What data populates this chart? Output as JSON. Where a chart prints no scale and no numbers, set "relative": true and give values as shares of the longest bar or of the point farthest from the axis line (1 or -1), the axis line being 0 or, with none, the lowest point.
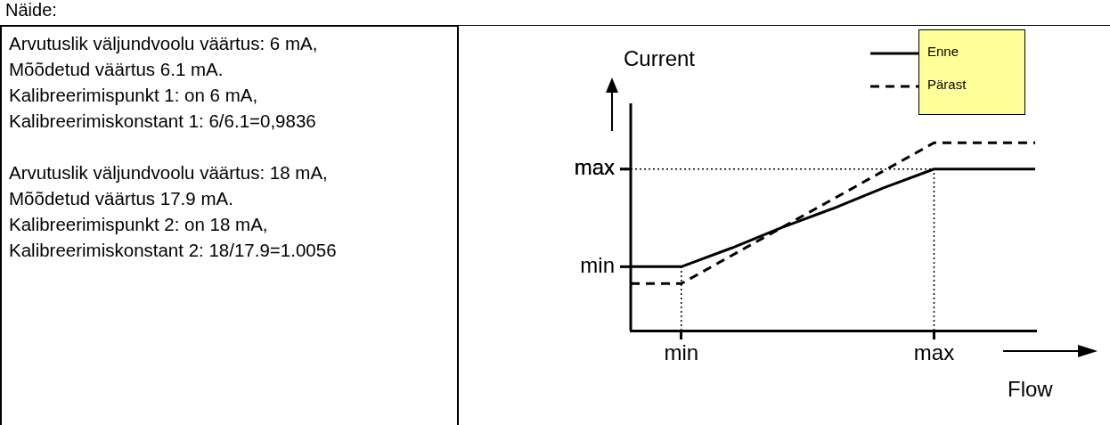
{
  "chart_data": {
    "type": "line",
    "title": "Näide:",
    "annotations": [
      "Arvutuslik väljundvoolu väärtus: 6 mA,",
      "Mõõdetud väärtus 6.1 mA.",
      "Kalibreerimispunkt 1: on 6 mA,",
      "Kalibreerimiskonstant 1: 6/6.1=0,9836",
      "Arvutuslik väljundvoolu väärtus: 18 mA,",
      "Mõõdetud väärtus 17.9 mA.",
      "Kalibreerimispunkt 2: on 18 mA,",
      "Kalibreerimiskonstant 2: 18/17.9=1.0056",
      "min"
    ],
    "xlabel": "Flow",
    "ylabel": "Current",
    "relative": true,
    "categories": [
      null,
      "min",
      null,
      null,
      null,
      null,
      "max",
      null,
      null
    ],
    "series": [
      {
        "name": "Enne",
        "color": "#000000",
        "line_style": "solid",
        "values": [
          0.34,
          0.34,
          0.44,
          0.55,
          0.65,
          0.76,
          0.86,
          0.86,
          0.86
        ]
      },
      {
        "name": "Pärast",
        "color": "#000000",
        "line_style": "dashed",
        "values": [
          0.25,
          0.25,
          0.4,
          0.55,
          0.7,
          0.85,
          1,
          1,
          1
        ]
      }
    ],
    "ref_lines": [
      {
        "axis": "y",
        "value": 0.86,
        "label": "max",
        "line_style": "dotted",
        "color": "#000000"
      },
      {
        "axis": "x",
        "value": "min",
        "line_style": "dotted",
        "color": "#000000"
      },
      {
        "axis": "x",
        "value": "max",
        "line_style": "dotted",
        "color": "#000000"
      }
    ],
    "marker": "none",
    "legend": "top right"
  }
}
